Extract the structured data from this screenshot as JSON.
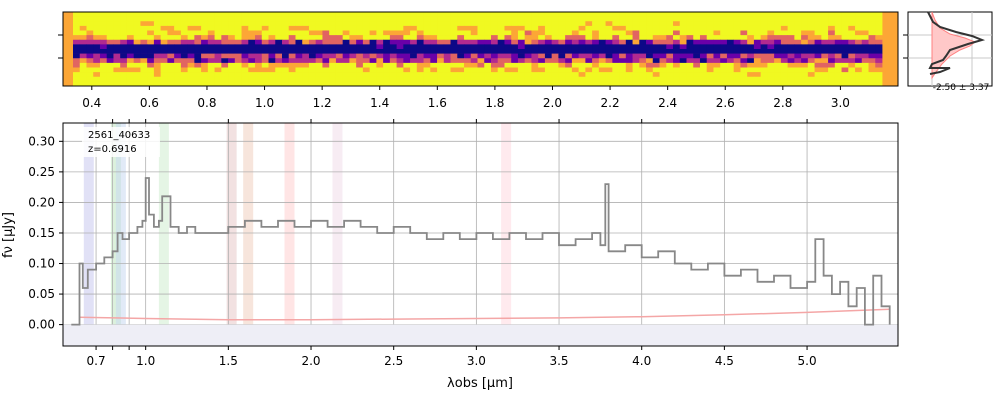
{
  "chart_data": [
    {
      "type": "heatmap",
      "name": "2D spectrum",
      "x_tick_labels": [
        "0.4",
        "0.6",
        "0.8",
        "1.0",
        "1.2",
        "1.4",
        "1.6",
        "1.8",
        "2.0",
        "2.2",
        "2.4",
        "2.6",
        "2.8",
        "3.0"
      ],
      "x_ticks": [
        0.4,
        0.6,
        0.8,
        1.0,
        1.2,
        1.4,
        1.6,
        1.8,
        2.0,
        2.2,
        2.4,
        2.6,
        2.8,
        3.0
      ],
      "xlim": [
        0.3,
        3.2
      ],
      "colormap": [
        "#0d0887",
        "#6a00a8",
        "#b12a90",
        "#e16462",
        "#fca636",
        "#f0f921"
      ]
    },
    {
      "type": "line",
      "name": "spatial profile",
      "annotation": "-2.50 ± 3.37",
      "profile_color": "#333333",
      "model_color": "#ff8080",
      "fill_color": "#ffc8c8"
    },
    {
      "type": "line",
      "object_id": "2561_40633",
      "redshift_label": "z=0.6916",
      "xlabel": "λobs [μm]",
      "ylabel": "fν [μJy]",
      "xlim": [
        0.5,
        5.55
      ],
      "ylim": [
        -0.035,
        0.33
      ],
      "x_ticks": [
        0.7,
        0.8,
        0.9,
        1.0,
        1.5,
        2.0,
        2.5,
        3.0,
        3.5,
        4.0,
        4.5,
        5.0
      ],
      "x_tick_labels": [
        "0.7",
        "",
        "",
        "1.0",
        "1.5",
        "2.0",
        "2.5",
        "3.0",
        "3.5",
        "4.0",
        "4.5",
        "5.0"
      ],
      "y_ticks": [
        0.0,
        0.05,
        0.1,
        0.15,
        0.2,
        0.25,
        0.3
      ],
      "y_tick_labels": [
        "0.00",
        "0.05",
        "0.10",
        "0.15",
        "0.20",
        "0.25",
        "0.30"
      ],
      "grid": true,
      "series": [
        {
          "color": "#888888",
          "x": [
            0.55,
            0.57,
            0.6,
            0.62,
            0.65,
            0.7,
            0.75,
            0.8,
            0.83,
            0.86,
            0.9,
            0.95,
            0.98,
            1.0,
            1.02,
            1.05,
            1.08,
            1.1,
            1.15,
            1.2,
            1.25,
            1.3,
            1.4,
            1.5,
            1.6,
            1.7,
            1.8,
            1.9,
            2.0,
            2.1,
            2.2,
            2.3,
            2.4,
            2.5,
            2.6,
            2.7,
            2.8,
            2.9,
            3.0,
            3.1,
            3.2,
            3.3,
            3.4,
            3.5,
            3.6,
            3.7,
            3.75,
            3.78,
            3.8,
            3.9,
            4.0,
            4.1,
            4.2,
            4.3,
            4.4,
            4.5,
            4.6,
            4.7,
            4.8,
            4.9,
            5.0,
            5.05,
            5.1,
            5.15,
            5.2,
            5.25,
            5.3,
            5.35,
            5.4,
            5.45,
            5.5
          ],
          "y": [
            0.0,
            0.0,
            0.1,
            0.06,
            0.09,
            0.1,
            0.11,
            0.12,
            0.15,
            0.14,
            0.15,
            0.16,
            0.17,
            0.24,
            0.18,
            0.16,
            0.17,
            0.21,
            0.16,
            0.15,
            0.16,
            0.15,
            0.15,
            0.16,
            0.17,
            0.16,
            0.17,
            0.16,
            0.17,
            0.16,
            0.17,
            0.16,
            0.15,
            0.16,
            0.15,
            0.14,
            0.15,
            0.14,
            0.15,
            0.14,
            0.15,
            0.14,
            0.15,
            0.13,
            0.14,
            0.15,
            0.13,
            0.23,
            0.12,
            0.13,
            0.11,
            0.12,
            0.1,
            0.09,
            0.1,
            0.08,
            0.09,
            0.07,
            0.08,
            0.06,
            0.07,
            0.14,
            0.08,
            0.05,
            0.07,
            0.03,
            0.06,
            0.0,
            0.08,
            0.03,
            0.0
          ]
        },
        {
          "color": "#f4a6a6",
          "x": [
            0.6,
            1.0,
            1.5,
            2.0,
            2.5,
            3.0,
            3.5,
            4.0,
            4.5,
            5.0,
            5.5
          ],
          "y": [
            0.012,
            0.01,
            0.008,
            0.008,
            0.009,
            0.01,
            0.011,
            0.013,
            0.016,
            0.02,
            0.025
          ]
        }
      ],
      "line_markers": [
        {
          "x": 0.656,
          "color": "#c8c8ee"
        },
        {
          "x": 0.82,
          "color": "#bfe5bf"
        },
        {
          "x": 0.85,
          "color": "#c8d8f0"
        },
        {
          "x": 1.11,
          "color": "#cfeccf"
        },
        {
          "x": 1.52,
          "color": "#e8c8c8"
        },
        {
          "x": 1.62,
          "color": "#f0d0c0"
        },
        {
          "x": 1.87,
          "color": "#ffd0d0"
        },
        {
          "x": 2.16,
          "color": "#f0dcea"
        },
        {
          "x": 3.18,
          "color": "#ffd8e0"
        }
      ]
    }
  ]
}
